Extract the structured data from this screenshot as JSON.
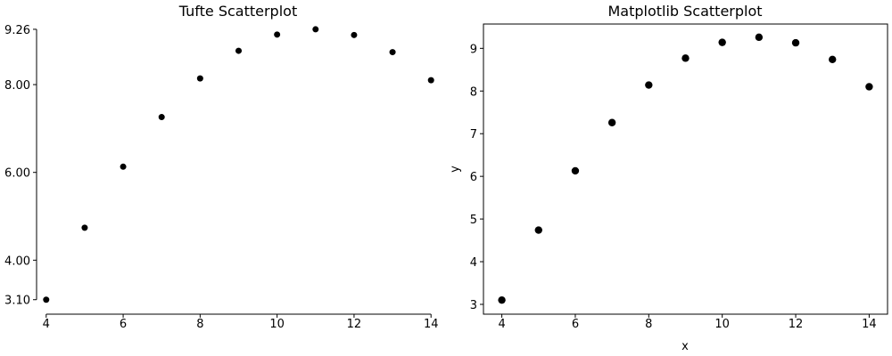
{
  "chart_data": [
    {
      "type": "scatter",
      "title": "Tufte Scatterplot",
      "xlabel": "",
      "ylabel": "",
      "x": [
        4,
        5,
        6,
        7,
        8,
        9,
        10,
        11,
        12,
        13,
        14
      ],
      "y": [
        3.1,
        4.74,
        6.13,
        7.26,
        8.14,
        8.77,
        9.14,
        9.26,
        9.13,
        8.74,
        8.1
      ],
      "xticks": [
        "4",
        "6",
        "8",
        "10",
        "12",
        "14"
      ],
      "yticks": [
        "3.10",
        "4.00",
        "6.00",
        "8.00",
        "9.26"
      ],
      "xlim": [
        3.75,
        14.25
      ],
      "ylim": [
        2.77,
        9.38
      ],
      "marker_color": "#000000",
      "grid": false
    },
    {
      "type": "scatter",
      "title": "Matplotlib Scatterplot",
      "xlabel": "x",
      "ylabel": "y",
      "x": [
        4,
        5,
        6,
        7,
        8,
        9,
        10,
        11,
        12,
        13,
        14
      ],
      "y": [
        3.1,
        4.74,
        6.13,
        7.26,
        8.14,
        8.77,
        9.14,
        9.26,
        9.13,
        8.74,
        8.1
      ],
      "xticks": [
        "4",
        "6",
        "8",
        "10",
        "12",
        "14"
      ],
      "yticks": [
        "3",
        "4",
        "5",
        "6",
        "7",
        "8",
        "9"
      ],
      "xlim": [
        3.5,
        14.5
      ],
      "ylim": [
        2.77,
        9.57
      ],
      "marker_color": "#000000",
      "grid": false
    }
  ]
}
